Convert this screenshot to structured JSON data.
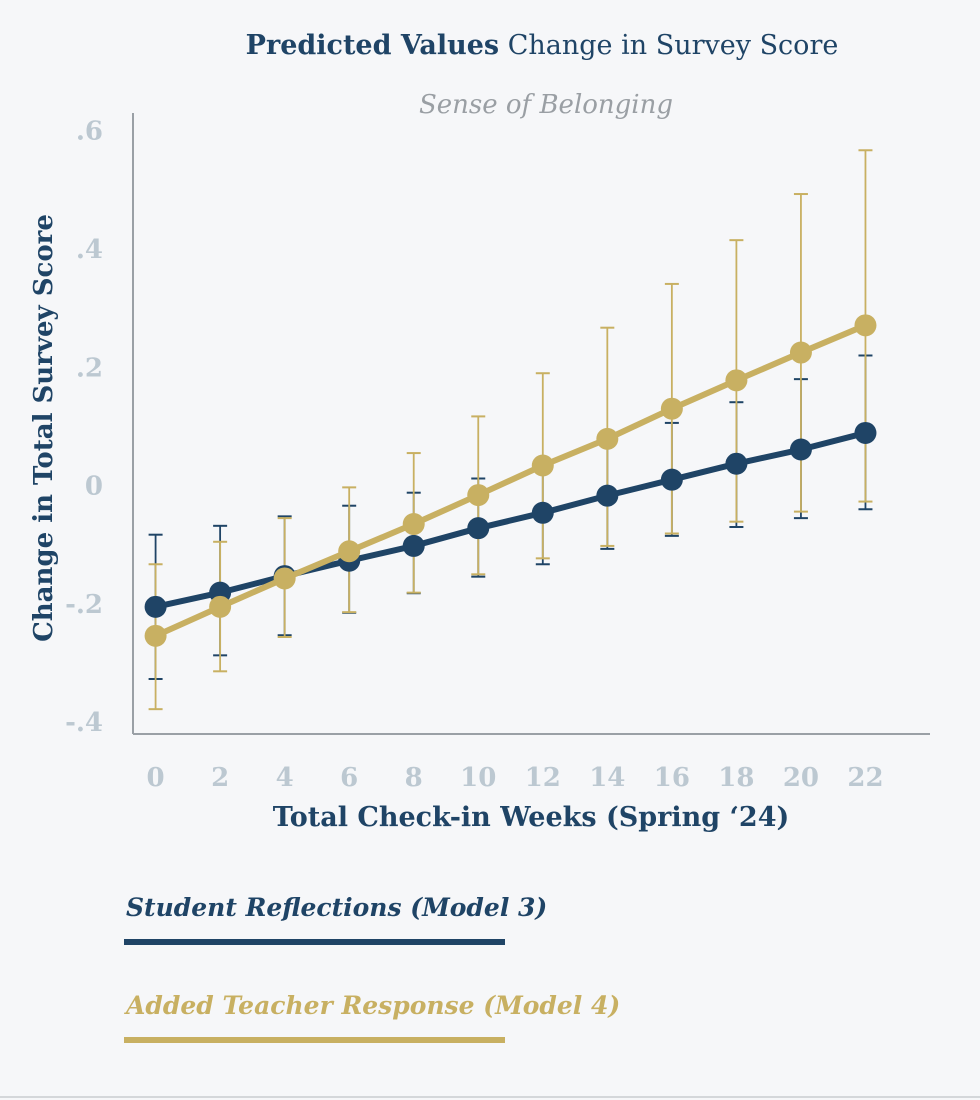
{
  "chart_data": {
    "type": "line",
    "title_bold": "Predicted Values",
    "title_rest": "Change in Survey Score",
    "subtitle": "Sense of Belonging",
    "xlabel": "Total Check-in Weeks (Spring ‘24)",
    "ylabel": "Change in Total Survey Score",
    "x": [
      0,
      2,
      4,
      6,
      8,
      10,
      12,
      14,
      16,
      18,
      20,
      22
    ],
    "x_tick_labels": [
      "0",
      "2",
      "4",
      "6",
      "8",
      "10",
      "12",
      "14",
      "16",
      "18",
      "20",
      "22"
    ],
    "y_ticks": [
      -0.4,
      -0.2,
      0,
      0.2,
      0.4,
      0.6
    ],
    "y_tick_labels": [
      "-.4",
      "-.2",
      "0",
      ".2",
      ".4",
      ".6"
    ],
    "ylim": [
      -0.42,
      0.63
    ],
    "xlim": [
      -0.7,
      24.0
    ],
    "grid": false,
    "legend_position": "bottom-left",
    "series": [
      {
        "name": "Student Reflections (Model 3)",
        "color": "#1f4466",
        "values": [
          -0.205,
          -0.181,
          -0.153,
          -0.127,
          -0.102,
          -0.072,
          -0.046,
          -0.017,
          0.01,
          0.037,
          0.061,
          0.089
        ],
        "ci_low": [
          -0.327,
          -0.287,
          -0.253,
          -0.215,
          -0.182,
          -0.154,
          -0.133,
          -0.107,
          -0.085,
          -0.07,
          -0.055,
          -0.04
        ],
        "ci_high": [
          -0.083,
          -0.068,
          -0.052,
          -0.034,
          -0.012,
          0.012,
          0.04,
          0.074,
          0.106,
          0.141,
          0.18,
          0.22
        ]
      },
      {
        "name": "Added Teacher Response (Model 4)",
        "color": "#c8b062",
        "values": [
          -0.254,
          -0.205,
          -0.157,
          -0.111,
          -0.065,
          -0.016,
          0.034,
          0.079,
          0.13,
          0.178,
          0.225,
          0.271
        ],
        "ci_low": [
          -0.378,
          -0.314,
          -0.256,
          -0.214,
          -0.181,
          -0.15,
          -0.123,
          -0.102,
          -0.081,
          -0.061,
          -0.044,
          -0.027
        ],
        "ci_high": [
          -0.133,
          -0.095,
          -0.055,
          -0.003,
          0.055,
          0.117,
          0.19,
          0.267,
          0.341,
          0.415,
          0.493,
          0.567
        ]
      }
    ]
  }
}
